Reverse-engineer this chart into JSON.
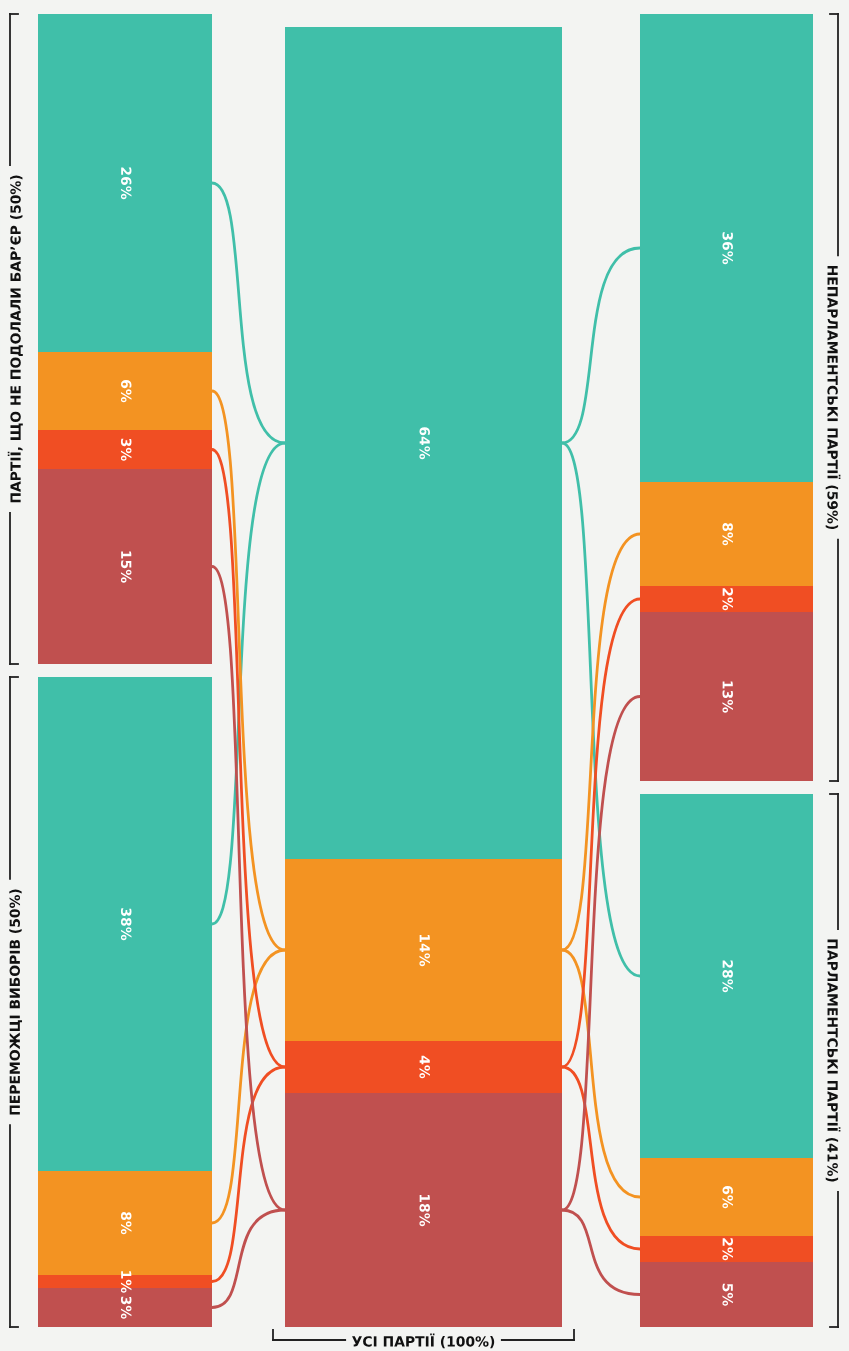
{
  "chart_data": {
    "type": "other",
    "categories": [
      "ПАРТІЇ, ЩО НЕ ПОДОЛАЛИ БАР’ЄР (50%)",
      "ПЕРЕМОЖЦІ ВИБОРІВ (50%)",
      "УСІ ПАРТІЇ (100%)",
      "НЕПАРЛАМЕНТСЬКІ ПАРТІЇ (59%)",
      "ПАРЛАМЕНТСЬКІ ПАРТІЇ (41%)"
    ],
    "series": [
      {
        "color": "#40bfa9",
        "values": [
          26,
          38,
          64,
          36,
          28
        ],
        "value_labels": [
          "26%",
          "38%",
          "64%",
          "36%",
          "28%"
        ]
      },
      {
        "color": "#f39322",
        "values": [
          6,
          8,
          14,
          8,
          6
        ],
        "value_labels": [
          "6%",
          "8%",
          "14%",
          "8%",
          "6%"
        ]
      },
      {
        "color": "#f04e23",
        "values": [
          3,
          1,
          4,
          2,
          2
        ],
        "value_labels": [
          "3%",
          "1%",
          "4%",
          "2%",
          "2%"
        ]
      },
      {
        "color": "#c0504f",
        "values": [
          15,
          3,
          18,
          13,
          5
        ],
        "value_labels": [
          "15%",
          "3%",
          "18%",
          "13%",
          "5%"
        ]
      }
    ]
  }
}
